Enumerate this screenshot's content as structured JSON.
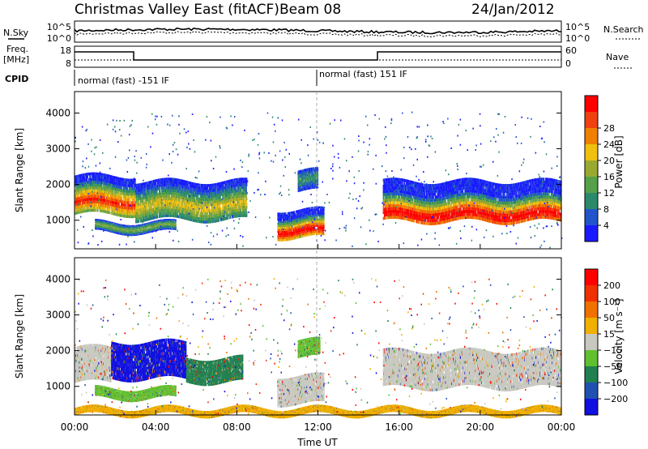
{
  "header": {
    "station": "Christmas Valley East (fitACF)",
    "beam": "Beam 08",
    "date": "24/Jan/2012"
  },
  "top_panels": {
    "nsky_label": "N.Sky",
    "nsky_ticks": [
      "10^5",
      "10^0"
    ],
    "nsearch_label": "N.Search",
    "nsearch_ticks": [
      "10^5",
      "10^0"
    ],
    "freq_label": "Freq.",
    "freq_unit": "[MHz]",
    "freq_ticks": [
      "18",
      "8"
    ],
    "nave_label": "Nave",
    "nave_ticks": [
      "60",
      "0"
    ],
    "cpid_label": "CPID",
    "cpid_segments": [
      {
        "label": "normal (fast) -151 IF",
        "start_hour": 0,
        "end_hour": 12
      },
      {
        "label": "normal (fast) 151 IF",
        "start_hour": 12,
        "end_hour": 24
      }
    ]
  },
  "chart_data": [
    {
      "type": "heatmap",
      "panel": "power",
      "ylabel": "Slant Range [km]",
      "yticks": [
        "1000",
        "2000",
        "3000",
        "4000"
      ],
      "ylim": [
        200,
        4600
      ],
      "xlim": [
        0,
        24
      ],
      "colorbar_label": "Power [dB]",
      "colorbar_ticks": [
        "4",
        "8",
        "12",
        "16",
        "20",
        "24",
        "28"
      ],
      "colors": [
        "#1a1aff",
        "#2255cc",
        "#2a8a6a",
        "#55a04a",
        "#9aaa30",
        "#f0c010",
        "#f08000",
        "#f04010",
        "#ff0000"
      ],
      "bands": [
        {
          "t0": 0.0,
          "t1": 3.0,
          "r0": 1150,
          "r1": 2250,
          "core": 1500,
          "peak": 0.85
        },
        {
          "t0": 3.0,
          "t1": 8.5,
          "r0": 1000,
          "r1": 2100,
          "core": 1400,
          "peak": 0.55
        },
        {
          "t0": 10.0,
          "t1": 12.3,
          "r0": 500,
          "r1": 1300,
          "core": 700,
          "peak": 0.95
        },
        {
          "t0": 11.0,
          "t1": 12.0,
          "r0": 1800,
          "r1": 2400,
          "core": 2100,
          "peak": 0.25
        },
        {
          "t0": 15.2,
          "t1": 24.0,
          "r0": 950,
          "r1": 2100,
          "core": 1150,
          "peak": 0.95
        },
        {
          "t0": 1.0,
          "t1": 5.0,
          "r0": 650,
          "r1": 950,
          "core": 800,
          "peak": 0.4
        }
      ]
    },
    {
      "type": "heatmap",
      "panel": "velocity",
      "ylabel": "Slant Range [km]",
      "yticks": [
        "1000",
        "2000",
        "3000",
        "4000"
      ],
      "ylim": [
        200,
        4600
      ],
      "xlim": [
        0,
        24
      ],
      "xticks": [
        "00:00",
        "04:00",
        "08:00",
        "12:00",
        "16:00",
        "20:00",
        "00:00"
      ],
      "xlabel": "Time UT",
      "colorbar_label": "Velocity [m s⁻¹]",
      "colorbar_ticks": [
        "200",
        "100",
        "50",
        "15",
        "−15",
        "−50",
        "−100",
        "−200"
      ],
      "colors": [
        "#1010e0",
        "#2050b0",
        "#208050",
        "#60c030",
        "#c8c8c0",
        "#f0b000",
        "#f07000",
        "#f03000",
        "#ff0000"
      ],
      "bands": [
        {
          "t0": 0.0,
          "t1": 1.8,
          "r0": 1100,
          "r1": 2100,
          "color": "#c8c8c0"
        },
        {
          "t0": 1.8,
          "t1": 5.5,
          "r0": 1200,
          "r1": 2250,
          "color": "#1010e0"
        },
        {
          "t0": 5.5,
          "t1": 8.3,
          "r0": 1100,
          "r1": 1800,
          "color": "#208050"
        },
        {
          "t0": 10.0,
          "t1": 12.3,
          "r0": 500,
          "r1": 1300,
          "color": "#c8c8c0"
        },
        {
          "t0": 11.0,
          "t1": 12.1,
          "r0": 1800,
          "r1": 2300,
          "color": "#60c030"
        },
        {
          "t0": 15.2,
          "t1": 24.0,
          "r0": 950,
          "r1": 2000,
          "color": "#c8c8c0"
        },
        {
          "t0": 1.0,
          "t1": 5.0,
          "r0": 650,
          "r1": 950,
          "color": "#60c030"
        },
        {
          "t0": 0,
          "t1": 24,
          "r0": 200,
          "r1": 400,
          "color": "#f0b000"
        }
      ]
    }
  ]
}
